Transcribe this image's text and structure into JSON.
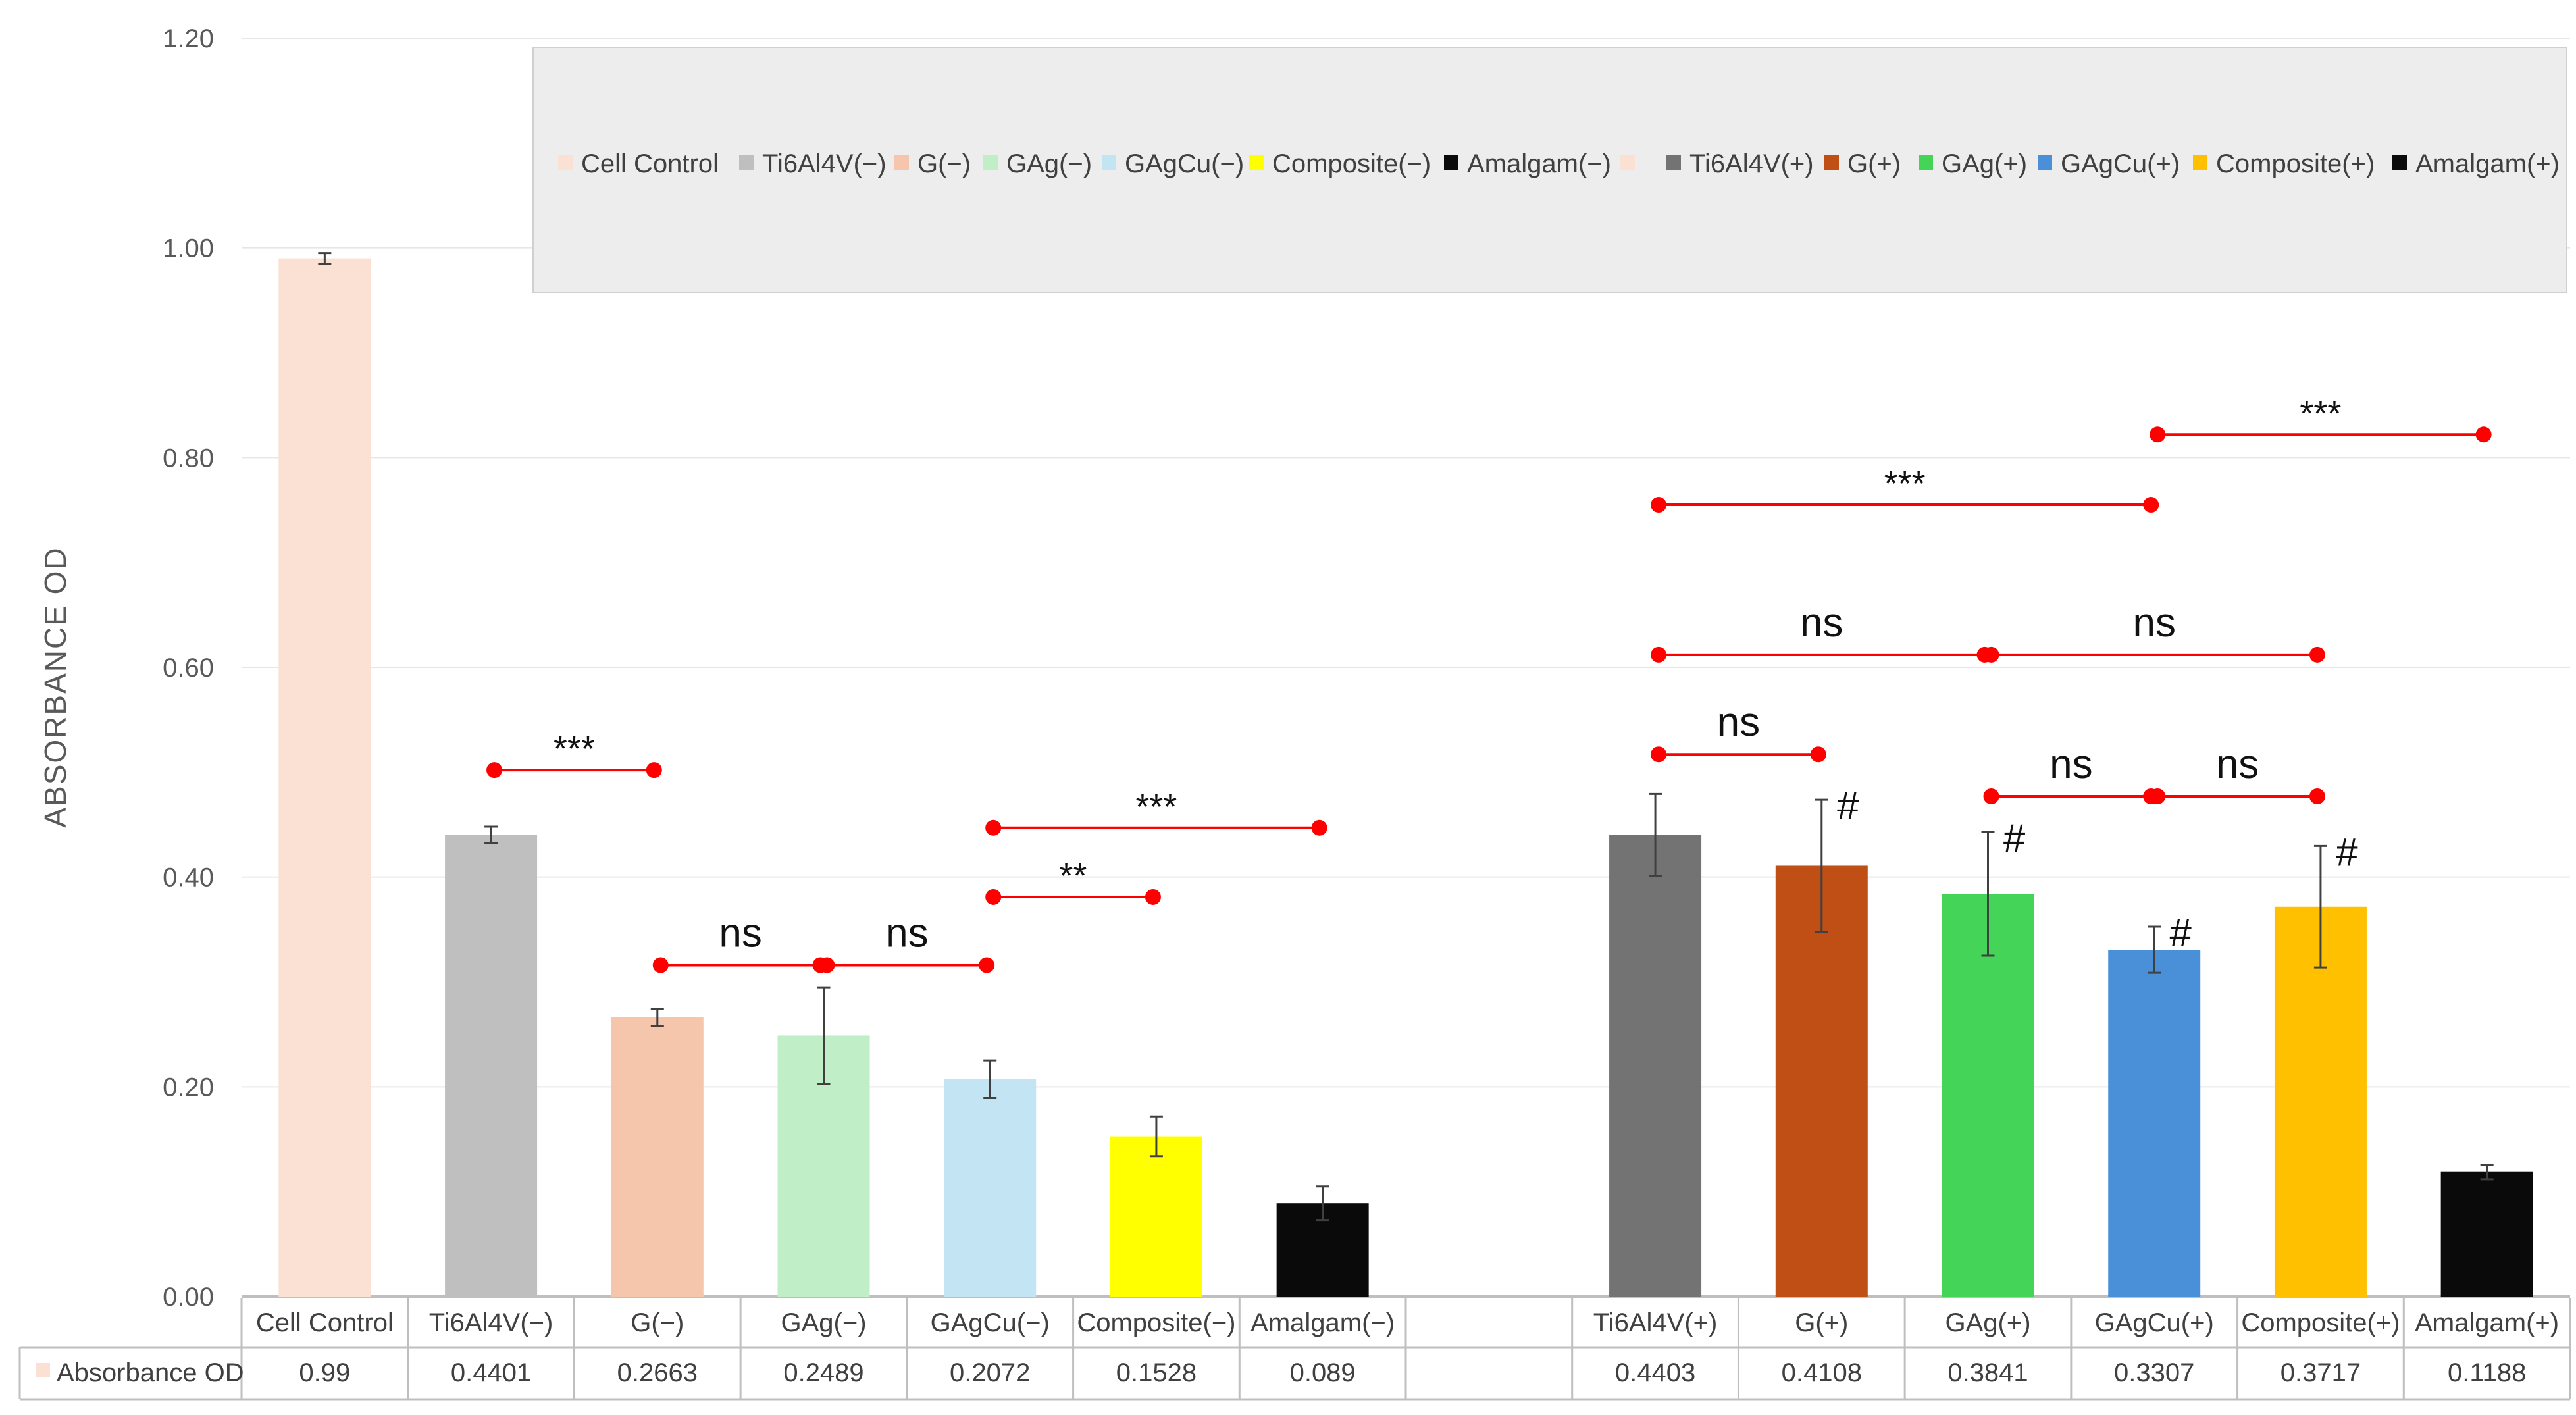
{
  "chart_data": {
    "type": "bar",
    "ylabel": "ABSORBANCE OD",
    "ylim": [
      0,
      1.2
    ],
    "yticks": [
      "0.00",
      "0.20",
      "0.40",
      "0.60",
      "0.80",
      "1.00",
      "1.20"
    ],
    "grid": true,
    "legend_position": "top-right",
    "categories": [
      "Cell Control",
      "Ti6Al4V(−)",
      "G(−)",
      "GAg(−)",
      "GAgCu(−)",
      "Composite(−)",
      "Amalgam(−)",
      "",
      "Ti6Al4V(+)",
      "G(+)",
      "GAg(+)",
      "GAgCu(+)",
      "Composite(+)",
      "Amalgam(+)"
    ],
    "series": [
      {
        "name": "Absorbance OD",
        "values": [
          0.99,
          0.4401,
          0.2663,
          0.2489,
          0.2072,
          0.1528,
          0.089,
          null,
          0.4403,
          0.4108,
          0.3841,
          0.3307,
          0.3717,
          0.1188
        ],
        "value_labels": [
          "0.99",
          "0.4401",
          "0.2663",
          "0.2489",
          "0.2072",
          "0.1528",
          "0.089",
          "",
          "0.4403",
          "0.4108",
          "0.3841",
          "0.3307",
          "0.3717",
          "0.1188"
        ],
        "errors": [
          0.005,
          0.008,
          0.008,
          0.046,
          0.018,
          0.019,
          0.016,
          null,
          0.039,
          0.063,
          0.059,
          0.022,
          0.058,
          0.007
        ],
        "colors": [
          "#FBE1D4",
          "#BFBFBF",
          "#F5C6AB",
          "#C0EEC6",
          "#C2E4F3",
          "#FFFF00",
          "#0A0A0A",
          "",
          "#737373",
          "#C04F15",
          "#44D457",
          "#4A90D9",
          "#FFC000",
          "#0A0A0A"
        ]
      }
    ],
    "legend": [
      {
        "label": "Cell Control",
        "color": "#FBE1D4"
      },
      {
        "label": "Ti6Al4V(−)",
        "color": "#BFBFBF"
      },
      {
        "label": "G(−)",
        "color": "#F5C6AB"
      },
      {
        "label": "GAg(−)",
        "color": "#C0EEC6"
      },
      {
        "label": "GAgCu(−)",
        "color": "#C2E4F3"
      },
      {
        "label": "Composite(−)",
        "color": "#FFFF00"
      },
      {
        "label": "Amalgam(−)",
        "color": "#0A0A0A"
      },
      {
        "label": "",
        "color": "#FBE1D4"
      },
      {
        "label": "Ti6Al4V(+)",
        "color": "#737373"
      },
      {
        "label": "G(+)",
        "color": "#C04F15"
      },
      {
        "label": "GAg(+)",
        "color": "#44D457"
      },
      {
        "label": "GAgCu(+)",
        "color": "#4A90D9"
      },
      {
        "label": "Composite(+)",
        "color": "#FFC000"
      },
      {
        "label": "Amalgam(+)",
        "color": "#0A0A0A"
      }
    ],
    "data_table": {
      "row_label": "Absorbance OD",
      "legend_key_color": "#FBE1D4"
    },
    "annotations": {
      "brackets": [
        {
          "from": 1,
          "to": 2,
          "y": 0.502,
          "label": "***"
        },
        {
          "from": 2,
          "to": 3,
          "y": 0.316,
          "label": "ns"
        },
        {
          "from": 3,
          "to": 4,
          "y": 0.316,
          "label": "ns"
        },
        {
          "from": 4,
          "to": 5,
          "y": 0.381,
          "label": "**"
        },
        {
          "from": 4,
          "to": 6,
          "y": 0.447,
          "label": "***"
        },
        {
          "from": 8,
          "to": 9,
          "y": 0.517,
          "label": "ns"
        },
        {
          "from": 8,
          "to": 10,
          "y": 0.612,
          "label": "ns"
        },
        {
          "from": 10,
          "to": 12,
          "y": 0.612,
          "label": "ns"
        },
        {
          "from": 10,
          "to": 11,
          "y": 0.477,
          "label": "ns"
        },
        {
          "from": 11,
          "to": 12,
          "y": 0.477,
          "label": "ns"
        },
        {
          "from": 8,
          "to": 11,
          "y": 0.755,
          "label": "***"
        },
        {
          "from": 11,
          "to": 13,
          "y": 0.822,
          "label": "***"
        }
      ],
      "hash_marks": [
        {
          "index": 9,
          "label": "#"
        },
        {
          "index": 10,
          "label": "#"
        },
        {
          "index": 11,
          "label": "#"
        },
        {
          "index": 12,
          "label": "#"
        }
      ],
      "marker_color": "#FF0000"
    }
  }
}
